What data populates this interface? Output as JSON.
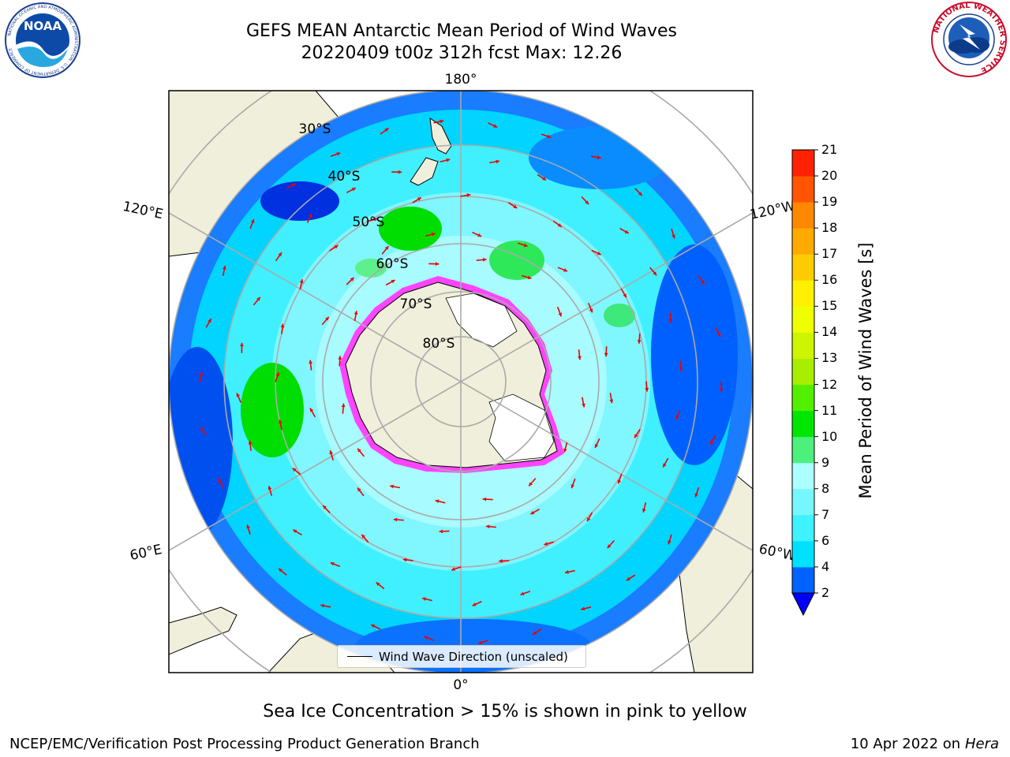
{
  "title": {
    "line1": "GEFS MEAN Antarctic Mean Period of Wind Waves",
    "line2": "20220409 t00z 312h fcst   Max: 12.26"
  },
  "logos": {
    "left": "NOAA",
    "left_ring_text": "NATIONAL OCEANIC AND ATMOSPHERIC ADMINISTRATION · U.S. DEPARTMENT OF COMMERCE",
    "right_ring_text": "NATIONAL WEATHER SERVICE"
  },
  "map": {
    "longitude_labels": {
      "top": "180°",
      "bottom": "0°",
      "upper_left": "120°E",
      "upper_right": "120°W",
      "lower_left": "60°E",
      "lower_right": "60°W"
    },
    "latitude_labels": [
      "30°S",
      "40°S",
      "50°S",
      "60°S",
      "70°S",
      "80°S"
    ],
    "legend_label": "Wind Wave Direction (unscaled)"
  },
  "colorbar": {
    "title": "Mean Period of Wind Waves [s]",
    "ticks": [
      "2",
      "4",
      "6",
      "7",
      "8",
      "9",
      "10",
      "11",
      "12",
      "13",
      "14",
      "15",
      "16",
      "17",
      "18",
      "19",
      "20",
      "21"
    ],
    "colors": [
      "#0063ff",
      "#00e0ff",
      "#3ef2ff",
      "#76f7ff",
      "#acffff",
      "#4cf07c",
      "#00e600",
      "#52f000",
      "#a8ee00",
      "#cdf500",
      "#eeff00",
      "#fff000",
      "#ffcc00",
      "#ffaa00",
      "#ff8800",
      "#ff5500",
      "#ff2200",
      "#ff0000"
    ],
    "underflow_color": "#0000ff"
  },
  "caption": "Sea Ice Concentration > 15% is shown in pink to yellow",
  "footer": {
    "left": "NCEP/EMC/Verification Post Processing Product Generation Branch",
    "right_date": "10 Apr 2022 on",
    "right_machine": "Hera"
  }
}
